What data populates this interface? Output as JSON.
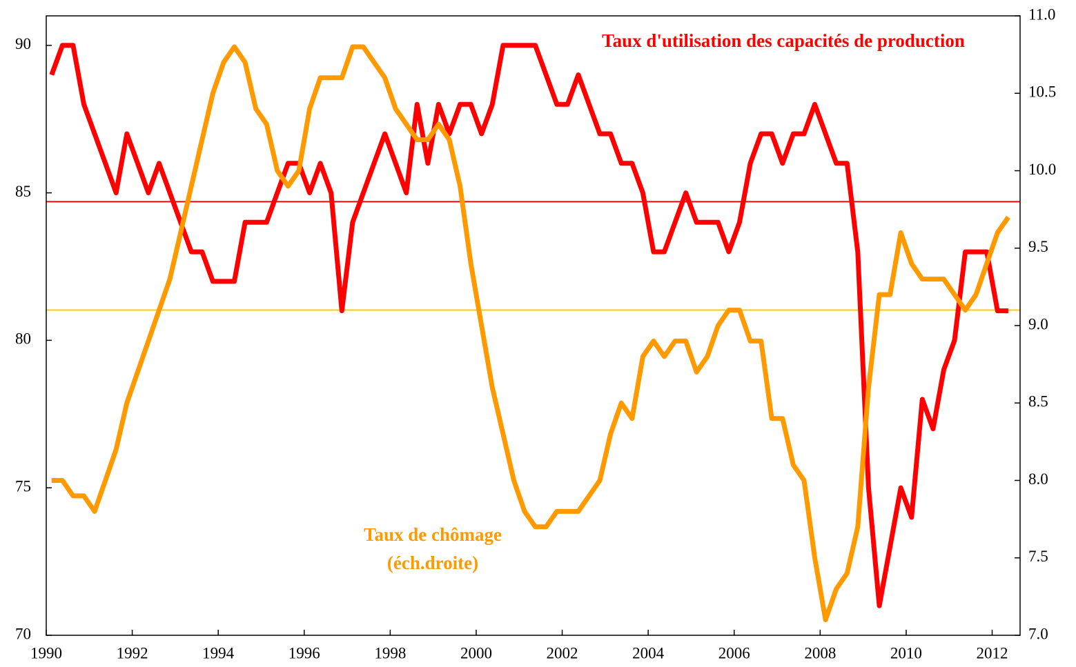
{
  "chart_data": {
    "type": "line",
    "x": [
      1990.125,
      1990.375,
      1990.625,
      1990.875,
      1991.125,
      1991.375,
      1991.625,
      1991.875,
      1992.125,
      1992.375,
      1992.625,
      1992.875,
      1993.125,
      1993.375,
      1993.625,
      1993.875,
      1994.125,
      1994.375,
      1994.625,
      1994.875,
      1995.125,
      1995.375,
      1995.625,
      1995.875,
      1996.125,
      1996.375,
      1996.625,
      1996.875,
      1997.125,
      1997.375,
      1997.625,
      1997.875,
      1998.125,
      1998.375,
      1998.625,
      1998.875,
      1999.125,
      1999.375,
      1999.625,
      1999.875,
      2000.125,
      2000.375,
      2000.625,
      2000.875,
      2001.125,
      2001.375,
      2001.625,
      2001.875,
      2002.125,
      2002.375,
      2002.625,
      2002.875,
      2003.125,
      2003.375,
      2003.625,
      2003.875,
      2004.125,
      2004.375,
      2004.625,
      2004.875,
      2005.125,
      2005.375,
      2005.625,
      2005.875,
      2006.125,
      2006.375,
      2006.625,
      2006.875,
      2007.125,
      2007.375,
      2007.625,
      2007.875,
      2008.125,
      2008.375,
      2008.625,
      2008.875,
      2009.125,
      2009.375,
      2009.625,
      2009.875,
      2010.125,
      2010.375,
      2010.625,
      2010.875,
      2011.125,
      2011.375,
      2011.625,
      2011.875,
      2012.125,
      2012.375
    ],
    "series": [
      {
        "name": "Taux d'utilisation des capacités de production",
        "color": "#ff0000",
        "values": [
          89,
          90,
          90,
          88,
          87,
          86,
          85,
          87,
          86,
          85,
          86,
          85,
          84,
          83,
          83,
          82,
          82,
          82,
          84,
          84,
          84,
          85,
          86,
          86,
          85,
          86,
          85,
          81,
          84,
          85,
          86,
          87,
          86,
          85,
          88,
          86,
          88,
          87,
          88,
          88,
          87,
          88,
          90,
          90,
          90,
          90,
          89,
          88,
          88,
          89,
          88,
          87,
          87,
          86,
          86,
          85,
          83,
          83,
          84,
          85,
          84,
          84,
          84,
          83,
          84,
          86,
          87,
          87,
          86,
          87,
          87,
          88,
          87,
          86,
          86,
          83,
          75,
          71,
          73,
          75,
          74,
          78,
          77,
          79,
          80,
          83,
          83,
          83,
          81,
          81
        ]
      },
      {
        "name": "Taux de chômage",
        "color": "#ff9900",
        "axis": "y2",
        "values": [
          8.0,
          8.0,
          7.9,
          7.9,
          7.8,
          8.0,
          8.2,
          8.5,
          8.7,
          8.9,
          9.1,
          9.3,
          9.6,
          9.9,
          10.2,
          10.5,
          10.7,
          10.8,
          10.7,
          10.4,
          10.3,
          10.0,
          9.9,
          10.0,
          10.4,
          10.6,
          10.6,
          10.6,
          10.8,
          10.8,
          10.7,
          10.6,
          10.4,
          10.3,
          10.2,
          10.2,
          10.3,
          10.2,
          9.9,
          9.4,
          9.0,
          8.6,
          8.3,
          8.0,
          7.8,
          7.7,
          7.7,
          7.8,
          7.8,
          7.8,
          7.9,
          8.0,
          8.3,
          8.5,
          8.4,
          8.8,
          8.9,
          8.8,
          8.9,
          8.9,
          8.7,
          8.8,
          9.0,
          9.1,
          9.1,
          8.9,
          8.9,
          8.4,
          8.4,
          8.1,
          8.0,
          7.5,
          7.1,
          7.3,
          7.4,
          7.7,
          8.6,
          9.2,
          9.2,
          9.6,
          9.4,
          9.3,
          9.3,
          9.3,
          9.2,
          9.1,
          9.2,
          9.4,
          9.6,
          9.7
        ]
      }
    ],
    "annotations": [
      {
        "text": "Taux d'utilisation des capacités de production",
        "color": "#ff0000"
      },
      {
        "text": "Taux de chômage",
        "color": "#ff9900"
      },
      {
        "text": "(éch.droite)",
        "color": "#ff9900"
      }
    ],
    "hlines": [
      {
        "value": 84.7,
        "color": "#ff0000"
      },
      {
        "value": 9.1,
        "axis": "y2",
        "color": "#ffcc00"
      }
    ],
    "xlim": [
      1990,
      2012.65
    ],
    "xticks": [
      1990,
      1992,
      1994,
      1996,
      1998,
      2000,
      2002,
      2004,
      2006,
      2008,
      2010,
      2012
    ],
    "ylim": [
      70,
      91
    ],
    "yticks": [
      70,
      75,
      80,
      85,
      90
    ],
    "y2lim": [
      7,
      11
    ],
    "y2ticks": [
      {
        "value": 7,
        "label": "7.0"
      },
      {
        "value": 7.5,
        "label": "7.5"
      },
      {
        "value": 8,
        "label": "8.0"
      },
      {
        "value": 8.5,
        "label": "8.5"
      },
      {
        "value": 9,
        "label": "9.0"
      },
      {
        "value": 9.5,
        "label": "9.5"
      },
      {
        "value": 10,
        "label": "10.0"
      },
      {
        "value": 10.5,
        "label": "10.5"
      },
      {
        "value": 11,
        "label": "11.0"
      }
    ],
    "grid": false
  }
}
